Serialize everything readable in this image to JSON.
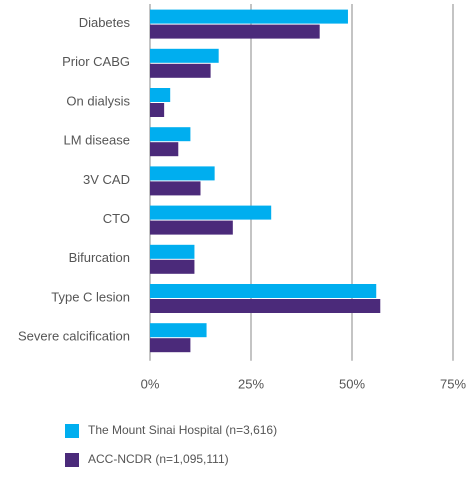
{
  "chart_data": {
    "type": "hbar",
    "categories": [
      "Diabetes",
      "Prior CABG",
      "On dialysis",
      "LM disease",
      "3V CAD",
      "CTO",
      "Bifurcation",
      "Type C lesion",
      "Severe calcification"
    ],
    "series": [
      {
        "name": "The Mount Sinai Hospital (n=3,616)",
        "color": "#00aeef",
        "values": [
          49,
          17,
          5,
          10,
          16,
          30,
          11,
          56,
          14
        ]
      },
      {
        "name": "ACC-NCDR (n=1,095,111)",
        "color": "#4b2a7a",
        "values": [
          42,
          15,
          3.5,
          7,
          12.5,
          20.5,
          11,
          57,
          10
        ]
      }
    ],
    "xlim": [
      0,
      75
    ],
    "xticks": [
      {
        "value": 0,
        "label": "0%"
      },
      {
        "value": 25,
        "label": "25%"
      },
      {
        "value": 50,
        "label": "50%"
      },
      {
        "value": 75,
        "label": "75%"
      }
    ],
    "grid": true
  }
}
